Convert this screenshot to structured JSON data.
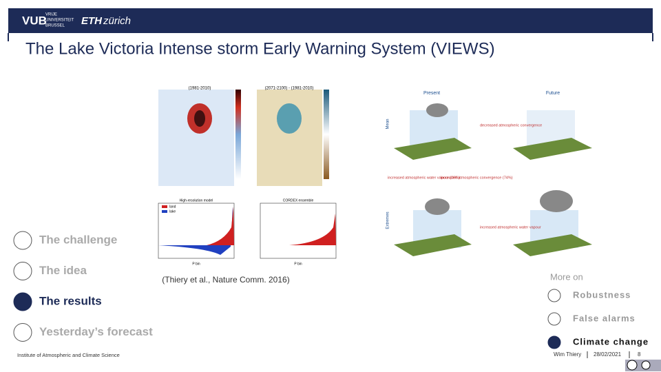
{
  "header": {
    "vub": "VUB",
    "vub_name": [
      "VRIJE",
      "UNIVERSITEIT",
      "BRUSSEL"
    ],
    "eth": "ETH",
    "eth_city": "zürich"
  },
  "title": "The Lake Victoria Intense storm Early Warning System (VIEWS)",
  "nav": [
    {
      "label": "The challenge",
      "active": false
    },
    {
      "label": "The idea",
      "active": false
    },
    {
      "label": "The results",
      "active": true
    },
    {
      "label": "Yesterday’s forecast",
      "active": false
    }
  ],
  "figure": {
    "maps": [
      "(1981-2010)",
      "(2071-2100) - (1981-2010)"
    ],
    "plots": [
      "High-resolution model",
      "CORDEX ensemble"
    ],
    "legend": [
      "land",
      "lake"
    ],
    "xlabel": "P bin",
    "diagram": {
      "columns": [
        "Present",
        "Future"
      ],
      "rows": [
        "Mean",
        "Extremes"
      ],
      "notes": [
        "decreased atmospheric convergence",
        "increased atmospheric water vapour (26%)",
        "increased atmospheric convergence (74%)",
        "increased atmospheric water vapour"
      ]
    }
  },
  "citation": "(Thiery et al., Nature Comm. 2016)",
  "more_on": {
    "heading": "More on",
    "items": [
      {
        "label": "Robustness",
        "active": false
      },
      {
        "label": "False alarms",
        "active": false
      },
      {
        "label": "Climate change",
        "active": true
      }
    ]
  },
  "footer": {
    "institute": "Institute of Atmospheric and Climate Science",
    "author": "Wim Thiery",
    "date": "28/02/2021",
    "page": "8"
  }
}
